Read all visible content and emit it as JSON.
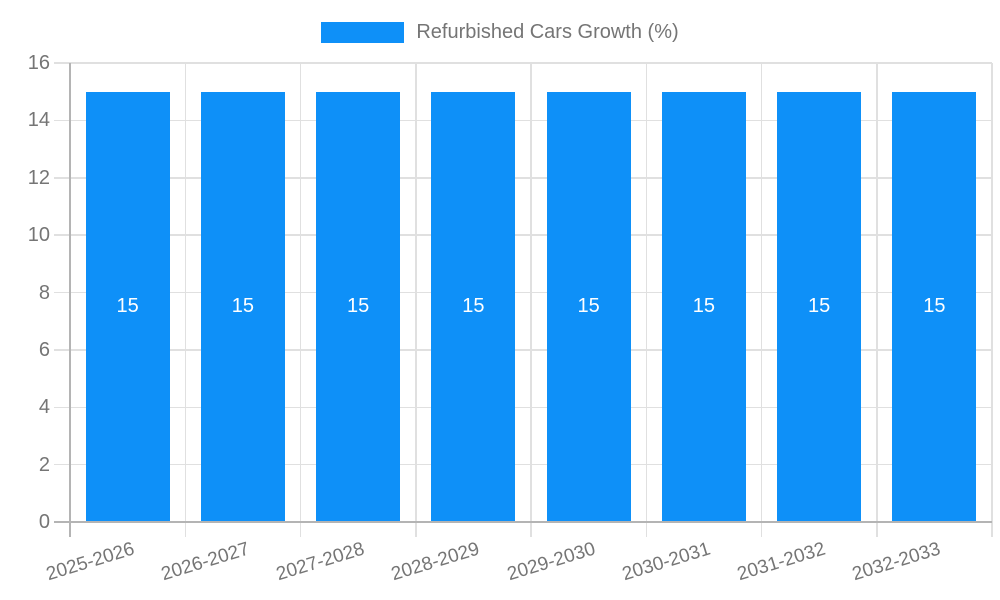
{
  "legend": {
    "swatch": "series-color-swatch",
    "label": "Refurbished Cars Growth (%)"
  },
  "colors": {
    "bar": "#0e90f8",
    "axis_text": "#757575",
    "grid_line": "#e0e0e0",
    "axis_line": "#b4b4b4",
    "value_label": "#ffffff",
    "background": "#ffffff"
  },
  "chart_data": {
    "type": "bar",
    "title": "",
    "legend_position": "top-center",
    "series": [
      {
        "name": "Refurbished Cars Growth (%)",
        "values": [
          15,
          15,
          15,
          15,
          15,
          15,
          15,
          15
        ]
      }
    ],
    "categories": [
      "2025-2026",
      "2026-2027",
      "2027-2028",
      "2028-2029",
      "2029-2030",
      "2030-2031",
      "2031-2032",
      "2032-2033"
    ],
    "bar_value_labels": [
      "15",
      "15",
      "15",
      "15",
      "15",
      "15",
      "15",
      "15"
    ],
    "yticks": [
      0,
      2,
      4,
      6,
      8,
      10,
      12,
      14,
      16
    ],
    "ylim": [
      0,
      16
    ],
    "xlabel": "",
    "ylabel": "",
    "grid": true,
    "x_label_rotation_deg": -17
  }
}
